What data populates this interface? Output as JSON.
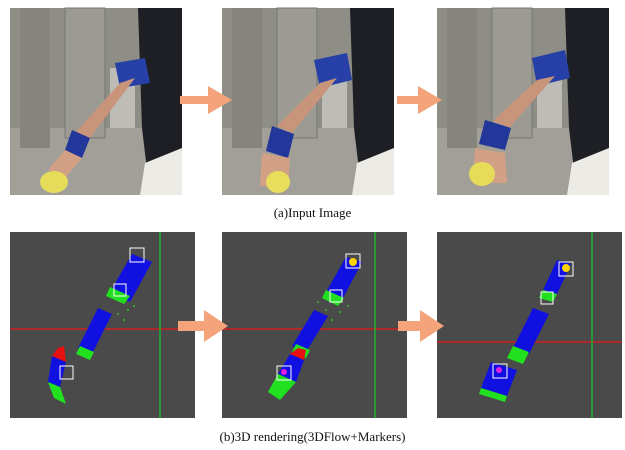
{
  "figure": {
    "caption_a": "(a)Input Image",
    "caption_b": "(b)3D rendering(3DFlow+Markers)"
  }
}
